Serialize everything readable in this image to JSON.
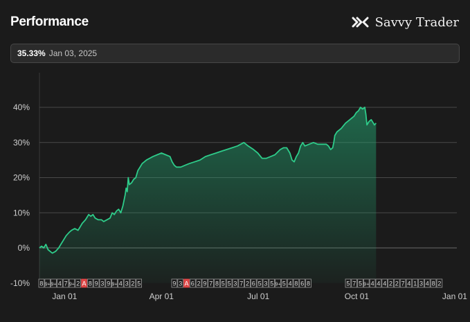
{
  "header": {
    "title": "Performance",
    "brand_name": "Savvy Trader"
  },
  "summary": {
    "percent": "35.33%",
    "date": "Jan 03, 2025"
  },
  "chart_data": {
    "type": "area",
    "ylim": [
      -10,
      45
    ],
    "yticks": [
      40,
      30,
      20,
      10,
      0,
      -10
    ],
    "ytick_labels": [
      "40%",
      "30%",
      "20%",
      "10%",
      "0%",
      "-10%"
    ],
    "xtick_labels": [
      "Jan 01",
      "Apr 01",
      "Jul 01",
      "Oct 01",
      "Jan 01"
    ],
    "xtick_positions": [
      23.5,
      114,
      204.5,
      296.5,
      388
    ],
    "xlim": [
      0,
      390
    ],
    "grid": true,
    "line_color": "#2ecc8a",
    "series": [
      {
        "values": [
          [
            0,
            0
          ],
          [
            2,
            0.5
          ],
          [
            4,
            0
          ],
          [
            6,
            1
          ],
          [
            8,
            -0.5
          ],
          [
            10,
            -1
          ],
          [
            12,
            -1.5
          ],
          [
            15,
            -1
          ],
          [
            18,
            0
          ],
          [
            20,
            1
          ],
          [
            22,
            2
          ],
          [
            25,
            3.5
          ],
          [
            28,
            4.5
          ],
          [
            30,
            5
          ],
          [
            33,
            5.5
          ],
          [
            36,
            5
          ],
          [
            38,
            6
          ],
          [
            40,
            7
          ],
          [
            43,
            8
          ],
          [
            46,
            9.5
          ],
          [
            48,
            9
          ],
          [
            50,
            9.5
          ],
          [
            52,
            8.5
          ],
          [
            55,
            8
          ],
          [
            58,
            8
          ],
          [
            60,
            7.5
          ],
          [
            63,
            8
          ],
          [
            66,
            8.5
          ],
          [
            68,
            10
          ],
          [
            70,
            9.5
          ],
          [
            72,
            10.5
          ],
          [
            74,
            11
          ],
          [
            76,
            10
          ],
          [
            78,
            12
          ],
          [
            80,
            15
          ],
          [
            81,
            17
          ],
          [
            82,
            16
          ],
          [
            83,
            20
          ],
          [
            84,
            18
          ],
          [
            86,
            18.5
          ],
          [
            88,
            19.5
          ],
          [
            90,
            20
          ],
          [
            92,
            22
          ],
          [
            94,
            23
          ],
          [
            96,
            24
          ],
          [
            98,
            24.5
          ],
          [
            100,
            25
          ],
          [
            103,
            25.5
          ],
          [
            106,
            26
          ],
          [
            110,
            26.5
          ],
          [
            114,
            27
          ],
          [
            118,
            26.5
          ],
          [
            122,
            26
          ],
          [
            124,
            24.5
          ],
          [
            126,
            23.5
          ],
          [
            128,
            23
          ],
          [
            132,
            23
          ],
          [
            136,
            23.5
          ],
          [
            140,
            24
          ],
          [
            145,
            24.5
          ],
          [
            150,
            25
          ],
          [
            155,
            26
          ],
          [
            160,
            26.5
          ],
          [
            165,
            27
          ],
          [
            170,
            27.5
          ],
          [
            175,
            28
          ],
          [
            180,
            28.5
          ],
          [
            185,
            29
          ],
          [
            188,
            29.5
          ],
          [
            191,
            30
          ],
          [
            195,
            29
          ],
          [
            200,
            28
          ],
          [
            204,
            27
          ],
          [
            208,
            25.5
          ],
          [
            212,
            25.5
          ],
          [
            216,
            26
          ],
          [
            220,
            26.5
          ],
          [
            225,
            28
          ],
          [
            228,
            28.5
          ],
          [
            231,
            28.5
          ],
          [
            234,
            27
          ],
          [
            236,
            25
          ],
          [
            238,
            24.5
          ],
          [
            240,
            26
          ],
          [
            242,
            27
          ],
          [
            244,
            29
          ],
          [
            246,
            30
          ],
          [
            248,
            29
          ],
          [
            252,
            29.5
          ],
          [
            256,
            30
          ],
          [
            260,
            29.5
          ],
          [
            264,
            29.5
          ],
          [
            268,
            29.5
          ],
          [
            270,
            29
          ],
          [
            272,
            28
          ],
          [
            274,
            28.5
          ],
          [
            275,
            30
          ],
          [
            276,
            32
          ],
          [
            278,
            33
          ],
          [
            282,
            34
          ],
          [
            286,
            35.5
          ],
          [
            290,
            36.5
          ],
          [
            294,
            37.5
          ],
          [
            296,
            38.5
          ],
          [
            298,
            39
          ],
          [
            300,
            40
          ],
          [
            302,
            39.5
          ],
          [
            304,
            40
          ],
          [
            305,
            38
          ],
          [
            306,
            35
          ],
          [
            308,
            36
          ],
          [
            310,
            36.5
          ],
          [
            312,
            35.5
          ],
          [
            313,
            35
          ],
          [
            314.5,
            35.5
          ]
        ]
      }
    ],
    "event_groups": [
      [
        "8",
        "9+",
        "9+",
        "4",
        "7",
        "9+",
        "2",
        "A",
        "8",
        "9",
        "3",
        "9",
        "9+",
        "4",
        "3",
        "2",
        "5"
      ],
      [
        "9",
        "3",
        "A",
        "6",
        "2",
        "9",
        "7",
        "8",
        "5",
        "5",
        "3",
        "7",
        "2",
        "6",
        "5",
        "3",
        "5",
        "9+",
        "5",
        "4",
        "8",
        "6",
        "8"
      ],
      [
        "5",
        "7",
        "5",
        "9+",
        "4",
        "4",
        "4",
        "2",
        "2",
        "7",
        "4",
        "1",
        "3",
        "4",
        "8",
        "2"
      ]
    ]
  }
}
